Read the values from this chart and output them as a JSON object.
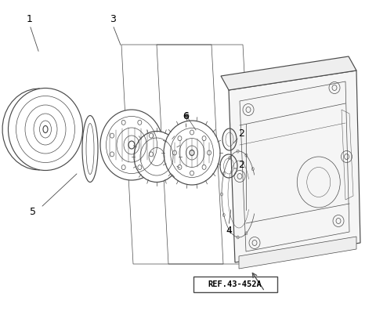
{
  "bg_color": "#ffffff",
  "line_color": "#4a4a4a",
  "label_color": "#000000",
  "ref_label": "REF.43-452A",
  "lw_main": 0.85,
  "lw_thin": 0.5,
  "lw_detail": 0.35
}
